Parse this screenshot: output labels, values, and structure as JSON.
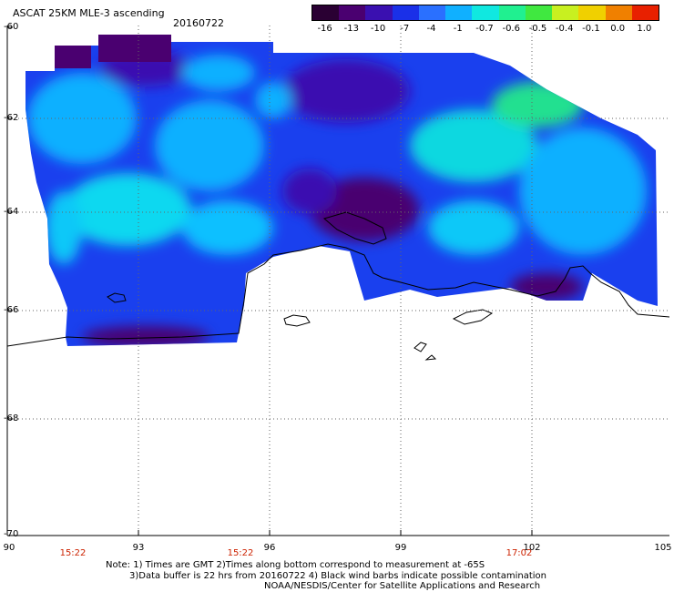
{
  "title": "ASCAT 25KM MLE-3 ascending",
  "date": "20160722",
  "colorbar": {
    "labels": [
      "-16",
      "-13",
      "-10",
      "-7",
      "-4",
      "-1",
      "-0.7",
      "-0.6",
      "-0.5",
      "-0.4",
      "-0.1",
      "0.0",
      "1.0"
    ],
    "colors": [
      "#2a0033",
      "#4a0070",
      "#3a10b0",
      "#1a30e8",
      "#2a70ff",
      "#10b0ff",
      "#10e8e0",
      "#20f090",
      "#40e840",
      "#c8f020",
      "#f0d000",
      "#f08000",
      "#e82000"
    ]
  },
  "lat_labels": [
    "-60",
    "-62",
    "-64",
    "-66",
    "-68",
    "-70"
  ],
  "lon_labels": [
    "90",
    "93",
    "96",
    "99",
    "102",
    "105"
  ],
  "time_labels": [
    "15:22",
    "15:22",
    "17:02"
  ],
  "notes": {
    "line1": "Note: 1) Times are GMT 2)Times along bottom correspond to measurement at -65S",
    "line2": "3)Data buffer is 22 hrs from 20160722 4) Black wind barbs indicate possible contamination",
    "line3": "NOAA/NESDIS/Center for Satellite Applications and Research"
  }
}
